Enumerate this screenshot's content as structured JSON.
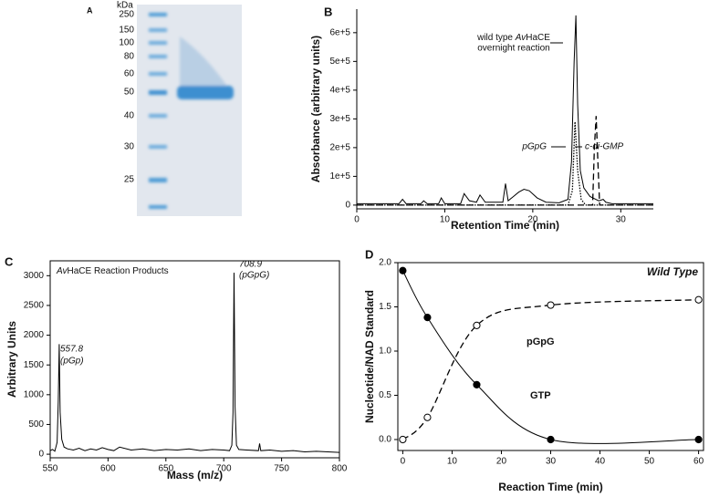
{
  "chart_data": [
    {
      "type": "gel",
      "label": "A",
      "unit": "kDa",
      "ladder": [
        250,
        150,
        100,
        80,
        60,
        50,
        40,
        30,
        25
      ]
    },
    {
      "type": "line",
      "label": "B",
      "frame": false,
      "y_label": "Absorbance (arbitrary units)",
      "x_label": "Retention Time (min)",
      "xlim": [
        0,
        33.7
      ],
      "xticks": [
        0,
        10,
        20,
        30
      ],
      "ylim": [
        -13000,
        682000
      ],
      "yticks": [
        0,
        {
          "value": 100000,
          "label": "1e+5"
        },
        {
          "value": 200000,
          "label": "2e+5"
        },
        {
          "value": 300000,
          "label": "3e+5"
        },
        {
          "value": 400000,
          "label": "4e+5"
        },
        {
          "value": 500000,
          "label": "5e+5"
        },
        {
          "value": 600000,
          "label": "6e+5"
        }
      ],
      "annotations": [
        {
          "parts": [
            "wild type ",
            "Av",
            "HaCE"
          ]
        },
        "overnight reaction",
        "pGpG",
        "c-di-GMP"
      ],
      "series": [
        {
          "color": "#000000",
          "style": "solid",
          "x": [
            0,
            4.8,
            5.2,
            5.6,
            7.3,
            7.6,
            8,
            9.3,
            9.6,
            10,
            11.8,
            12.2,
            12.8,
            13.6,
            14,
            14.6,
            16.6,
            16.9,
            17.2,
            17.8,
            18.4,
            19,
            19.6,
            20.5,
            21.5,
            23,
            24,
            24.4,
            24.7,
            24.9,
            25.1,
            25.4,
            25.8,
            26.5,
            27.5,
            28,
            28.3,
            29,
            33.7
          ],
          "values": [
            5000,
            5000,
            20000,
            5000,
            5000,
            15000,
            5000,
            5000,
            25000,
            5000,
            5000,
            40000,
            15000,
            10000,
            35000,
            10000,
            10000,
            75000,
            15000,
            30000,
            45000,
            55000,
            50000,
            25000,
            10000,
            8000,
            20000,
            150000,
            500000,
            660000,
            350000,
            120000,
            60000,
            30000,
            15000,
            20000,
            10000,
            5000,
            5000
          ]
        },
        {
          "color": "#000000",
          "style": "dotted",
          "x": [
            0,
            24,
            24.5,
            24.8,
            25.1,
            25.5,
            26,
            33.7
          ],
          "values": [
            0,
            0,
            50000,
            290000,
            120000,
            20000,
            0,
            0
          ]
        },
        {
          "color": "#000000",
          "style": "dashed",
          "x": [
            0,
            26.8,
            27,
            27.2,
            27.4,
            27.6,
            33.7
          ],
          "values": [
            0,
            0,
            200000,
            310000,
            150000,
            0,
            0
          ]
        }
      ]
    },
    {
      "type": "line",
      "label": "C",
      "frame": true,
      "title": {
        "parts": [
          "Av",
          "HaCE Reaction Products"
        ]
      },
      "y_label": "Arbitrary Units",
      "x_label": "Mass (m/z)",
      "xlim": [
        550,
        800
      ],
      "xticks": [
        550,
        600,
        650,
        700,
        750,
        800
      ],
      "ylim": [
        -60,
        3250
      ],
      "yticks": [
        0,
        500,
        1000,
        1500,
        2000,
        2500,
        3000
      ],
      "annotations": [
        "557.8",
        "(pGp)",
        "708.9",
        "(pGpG)"
      ],
      "series": [
        {
          "color": "#000000",
          "style": "solid",
          "x": [
            550,
            552,
            554,
            556,
            557,
            557.8,
            558.6,
            560,
            562,
            565,
            570,
            575,
            580,
            585,
            590,
            595,
            600,
            605,
            610,
            620,
            630,
            640,
            650,
            660,
            670,
            680,
            690,
            700,
            705,
            707,
            708,
            708.9,
            709.8,
            711,
            713,
            720,
            730,
            731,
            732,
            740,
            750,
            760,
            770,
            780,
            790,
            800
          ],
          "values": [
            60,
            80,
            50,
            200,
            900,
            1850,
            700,
            250,
            120,
            90,
            70,
            100,
            60,
            90,
            70,
            110,
            80,
            60,
            120,
            70,
            90,
            60,
            80,
            70,
            90,
            60,
            80,
            70,
            60,
            150,
            700,
            3050,
            800,
            150,
            80,
            70,
            60,
            180,
            60,
            70,
            50,
            60,
            40,
            50,
            40,
            30
          ]
        }
      ]
    },
    {
      "type": "line",
      "label": "D",
      "frame": true,
      "y_label": "Nucleotide/NAD Standard",
      "x_label": "Reaction Time (min)",
      "xlim": [
        -1,
        61
      ],
      "xticks": [
        0,
        10,
        20,
        30,
        40,
        50,
        60
      ],
      "ylim": [
        -0.124,
        2.0
      ],
      "yticks": [
        {
          "value": 0,
          "label": "0.0"
        },
        {
          "value": 0.5,
          "label": "0.5"
        },
        {
          "value": 1,
          "label": "1.0"
        },
        {
          "value": 1.5,
          "label": "1.5"
        },
        {
          "value": 2,
          "label": "2.0"
        }
      ],
      "annotations": [
        "Wild Type",
        "pGpG",
        "GTP"
      ],
      "series": [
        {
          "color": "#000000",
          "style": "solid",
          "marker": "filled",
          "smooth": true,
          "x": [
            0,
            5,
            15,
            30,
            60
          ],
          "values": [
            1.91,
            1.38,
            0.62,
            0,
            0
          ]
        },
        {
          "color": "#000000",
          "style": "dashed",
          "marker": "open",
          "smooth": true,
          "x": [
            0,
            5,
            15,
            30,
            60
          ],
          "values": [
            0,
            0.25,
            1.29,
            1.52,
            1.58
          ]
        }
      ]
    }
  ]
}
